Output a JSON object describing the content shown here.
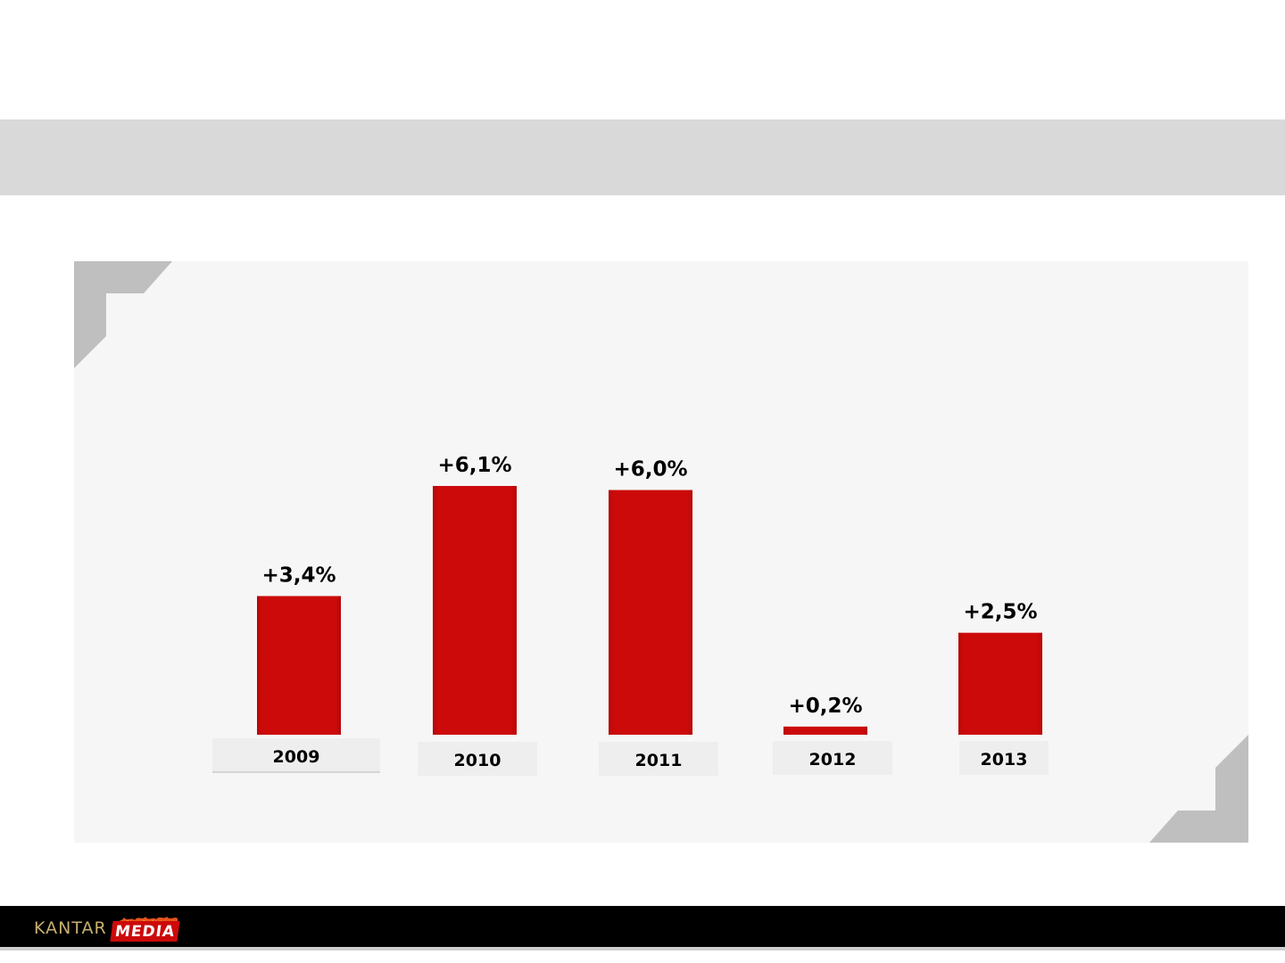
{
  "colors": {
    "bar": "#cc0a0a",
    "header_band": "#d9d9d9",
    "panel": "#f6f6f6",
    "corner": "#bfbfbf",
    "footer": "#000000"
  },
  "chart_data": {
    "type": "bar",
    "categories": [
      "2009",
      "2010",
      "2011",
      "2012",
      "2013"
    ],
    "values": [
      3.4,
      6.1,
      6.0,
      0.2,
      2.5
    ],
    "data_labels": [
      "+3,4%",
      "+6,1%",
      "+6,0%",
      "+0,2%",
      "+2,5%"
    ],
    "title": "",
    "xlabel": "",
    "ylabel": "",
    "ylim": [
      0,
      6.1
    ],
    "grid": false,
    "legend": "none"
  },
  "footer": {
    "logo_word_1": "KANTAR",
    "logo_word_2": "MEDIA"
  }
}
